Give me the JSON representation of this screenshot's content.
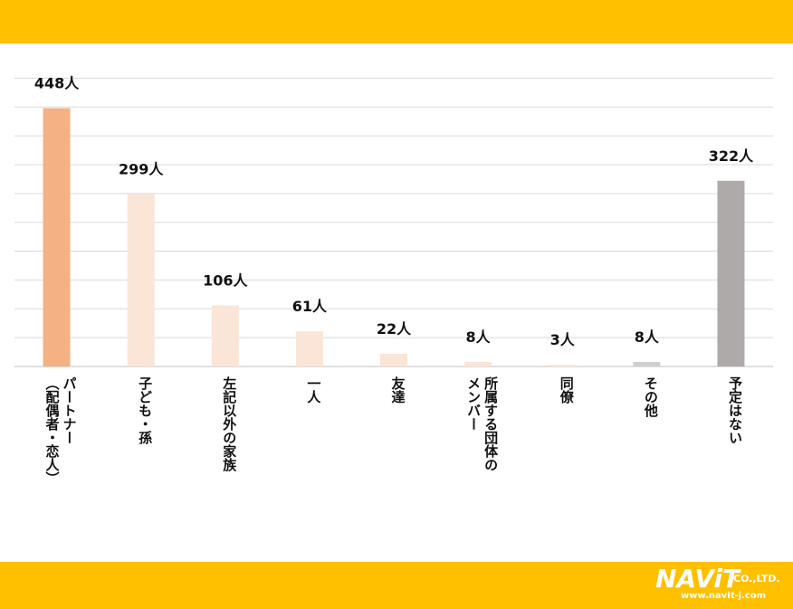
{
  "chart_data": {
    "type": "bar",
    "categories": [
      "パートナー（配偶者・恋人）",
      "子ども・孫",
      "左記以外の家族",
      "一人",
      "友達",
      "所属する団体のメンバー",
      "同僚",
      "その他",
      "予定はない"
    ],
    "category_lines": [
      [
        "パートナー",
        "（配偶者・恋人）"
      ],
      [
        "子ども・孫"
      ],
      [
        "左記以外の家族"
      ],
      [
        "一人"
      ],
      [
        "友達"
      ],
      [
        "所属する団体の",
        "メンバー"
      ],
      [
        "同僚"
      ],
      [
        "その他"
      ],
      [
        "予定はない"
      ]
    ],
    "values": [
      448,
      299,
      106,
      61,
      22,
      8,
      3,
      8,
      322
    ],
    "value_labels": [
      "448人",
      "299人",
      "106人",
      "61人",
      "22人",
      "8人",
      "3人",
      "8人",
      "322人"
    ],
    "colors": [
      "#F4B183",
      "#FBE5D6",
      "#FBE5D6",
      "#FBE5D6",
      "#FBE5D6",
      "#FBE5D6",
      "#FBE5D6",
      "#D0CECE",
      "#AEAAAA"
    ],
    "ylim": [
      0,
      500
    ],
    "grid": true,
    "title": "",
    "xlabel": "",
    "ylabel": ""
  },
  "footer": {
    "logo_main": "NAViT",
    "logo_company": "CO.,LTD.",
    "logo_url": "www.navit-j.com"
  }
}
